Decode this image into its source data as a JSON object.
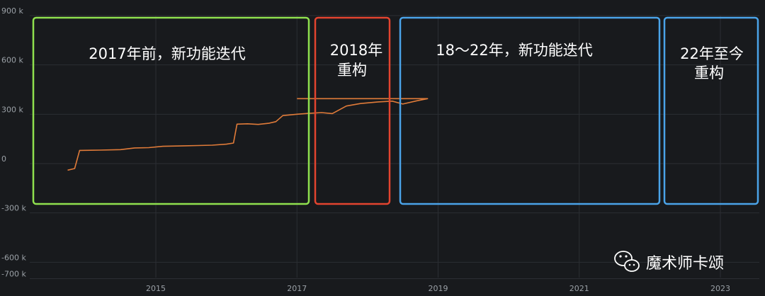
{
  "colors": {
    "background": "#181a1d",
    "grid": "#2b2e33",
    "line": "#e07b39",
    "bar_positive": "#5faa5a",
    "bar_negative": "#dd5a4e",
    "box_green": "#8fe04e",
    "box_red": "#e2442f",
    "box_blue": "#4aa3e8"
  },
  "chart_data": {
    "type": "line",
    "title": "",
    "xlabel": "",
    "ylabel": "",
    "grid": true,
    "xlim": [
      2013.7,
      2023.6
    ],
    "ylim": [
      -700000,
      900000
    ],
    "yticks": [
      {
        "value": 900000,
        "label": "900 k"
      },
      {
        "value": 600000,
        "label": "600 k"
      },
      {
        "value": 300000,
        "label": "300 k"
      },
      {
        "value": 0,
        "label": "0"
      },
      {
        "value": -300000,
        "label": "-300 k"
      },
      {
        "value": -600000,
        "label": "-600 k"
      },
      {
        "value": -700000,
        "label": "-700 k"
      }
    ],
    "xticks": [
      {
        "value": 2015,
        "label": "2015"
      },
      {
        "value": 2017,
        "label": "2017"
      },
      {
        "value": 2019,
        "label": "2019"
      },
      {
        "value": 2021,
        "label": "2021"
      },
      {
        "value": 2023,
        "label": "2023"
      }
    ],
    "series": [
      {
        "type": "line",
        "points": [
          [
            2013.75,
            -40000
          ],
          [
            2013.85,
            -30000
          ],
          [
            2013.92,
            80000
          ],
          [
            2014.2,
            82000
          ],
          [
            2014.5,
            85000
          ],
          [
            2014.7,
            95000
          ],
          [
            2014.9,
            97000
          ],
          [
            2015.1,
            105000
          ],
          [
            2015.4,
            108000
          ],
          [
            2015.6,
            110000
          ],
          [
            2015.8,
            112000
          ],
          [
            2016.0,
            118000
          ],
          [
            2016.1,
            125000
          ],
          [
            2016.15,
            240000
          ],
          [
            2016.3,
            242000
          ],
          [
            2016.45,
            238000
          ],
          [
            2016.6,
            245000
          ],
          [
            2016.7,
            255000
          ],
          [
            2016.8,
            292000
          ],
          [
            2017.0,
            300000
          ],
          [
            2017.15,
            305000
          ],
          [
            2017.35,
            310000
          ],
          [
            2017.5,
            304000
          ],
          [
            2017.7,
            350000
          ],
          [
            2017.9,
            365000
          ],
          [
            2018.15,
            375000
          ],
          [
            2018.35,
            380000
          ],
          [
            2018.5,
            362000
          ],
          [
            2018.7,
            382000
          ],
          [
            2018.85,
            395000
          ],
          [
            2017.0,
            395000
          ]
        ]
      }
    ]
  },
  "annotations": [
    {
      "label": "2017年前，新功能迭代"
    },
    {
      "label_lines": [
        "2018年",
        "重构"
      ]
    },
    {
      "label": "18～22年，新功能迭代"
    },
    {
      "label_lines": [
        "22年至今",
        "重构"
      ]
    }
  ],
  "watermark": {
    "icon": "wechat-icon",
    "label": "魔术师卡颂"
  }
}
